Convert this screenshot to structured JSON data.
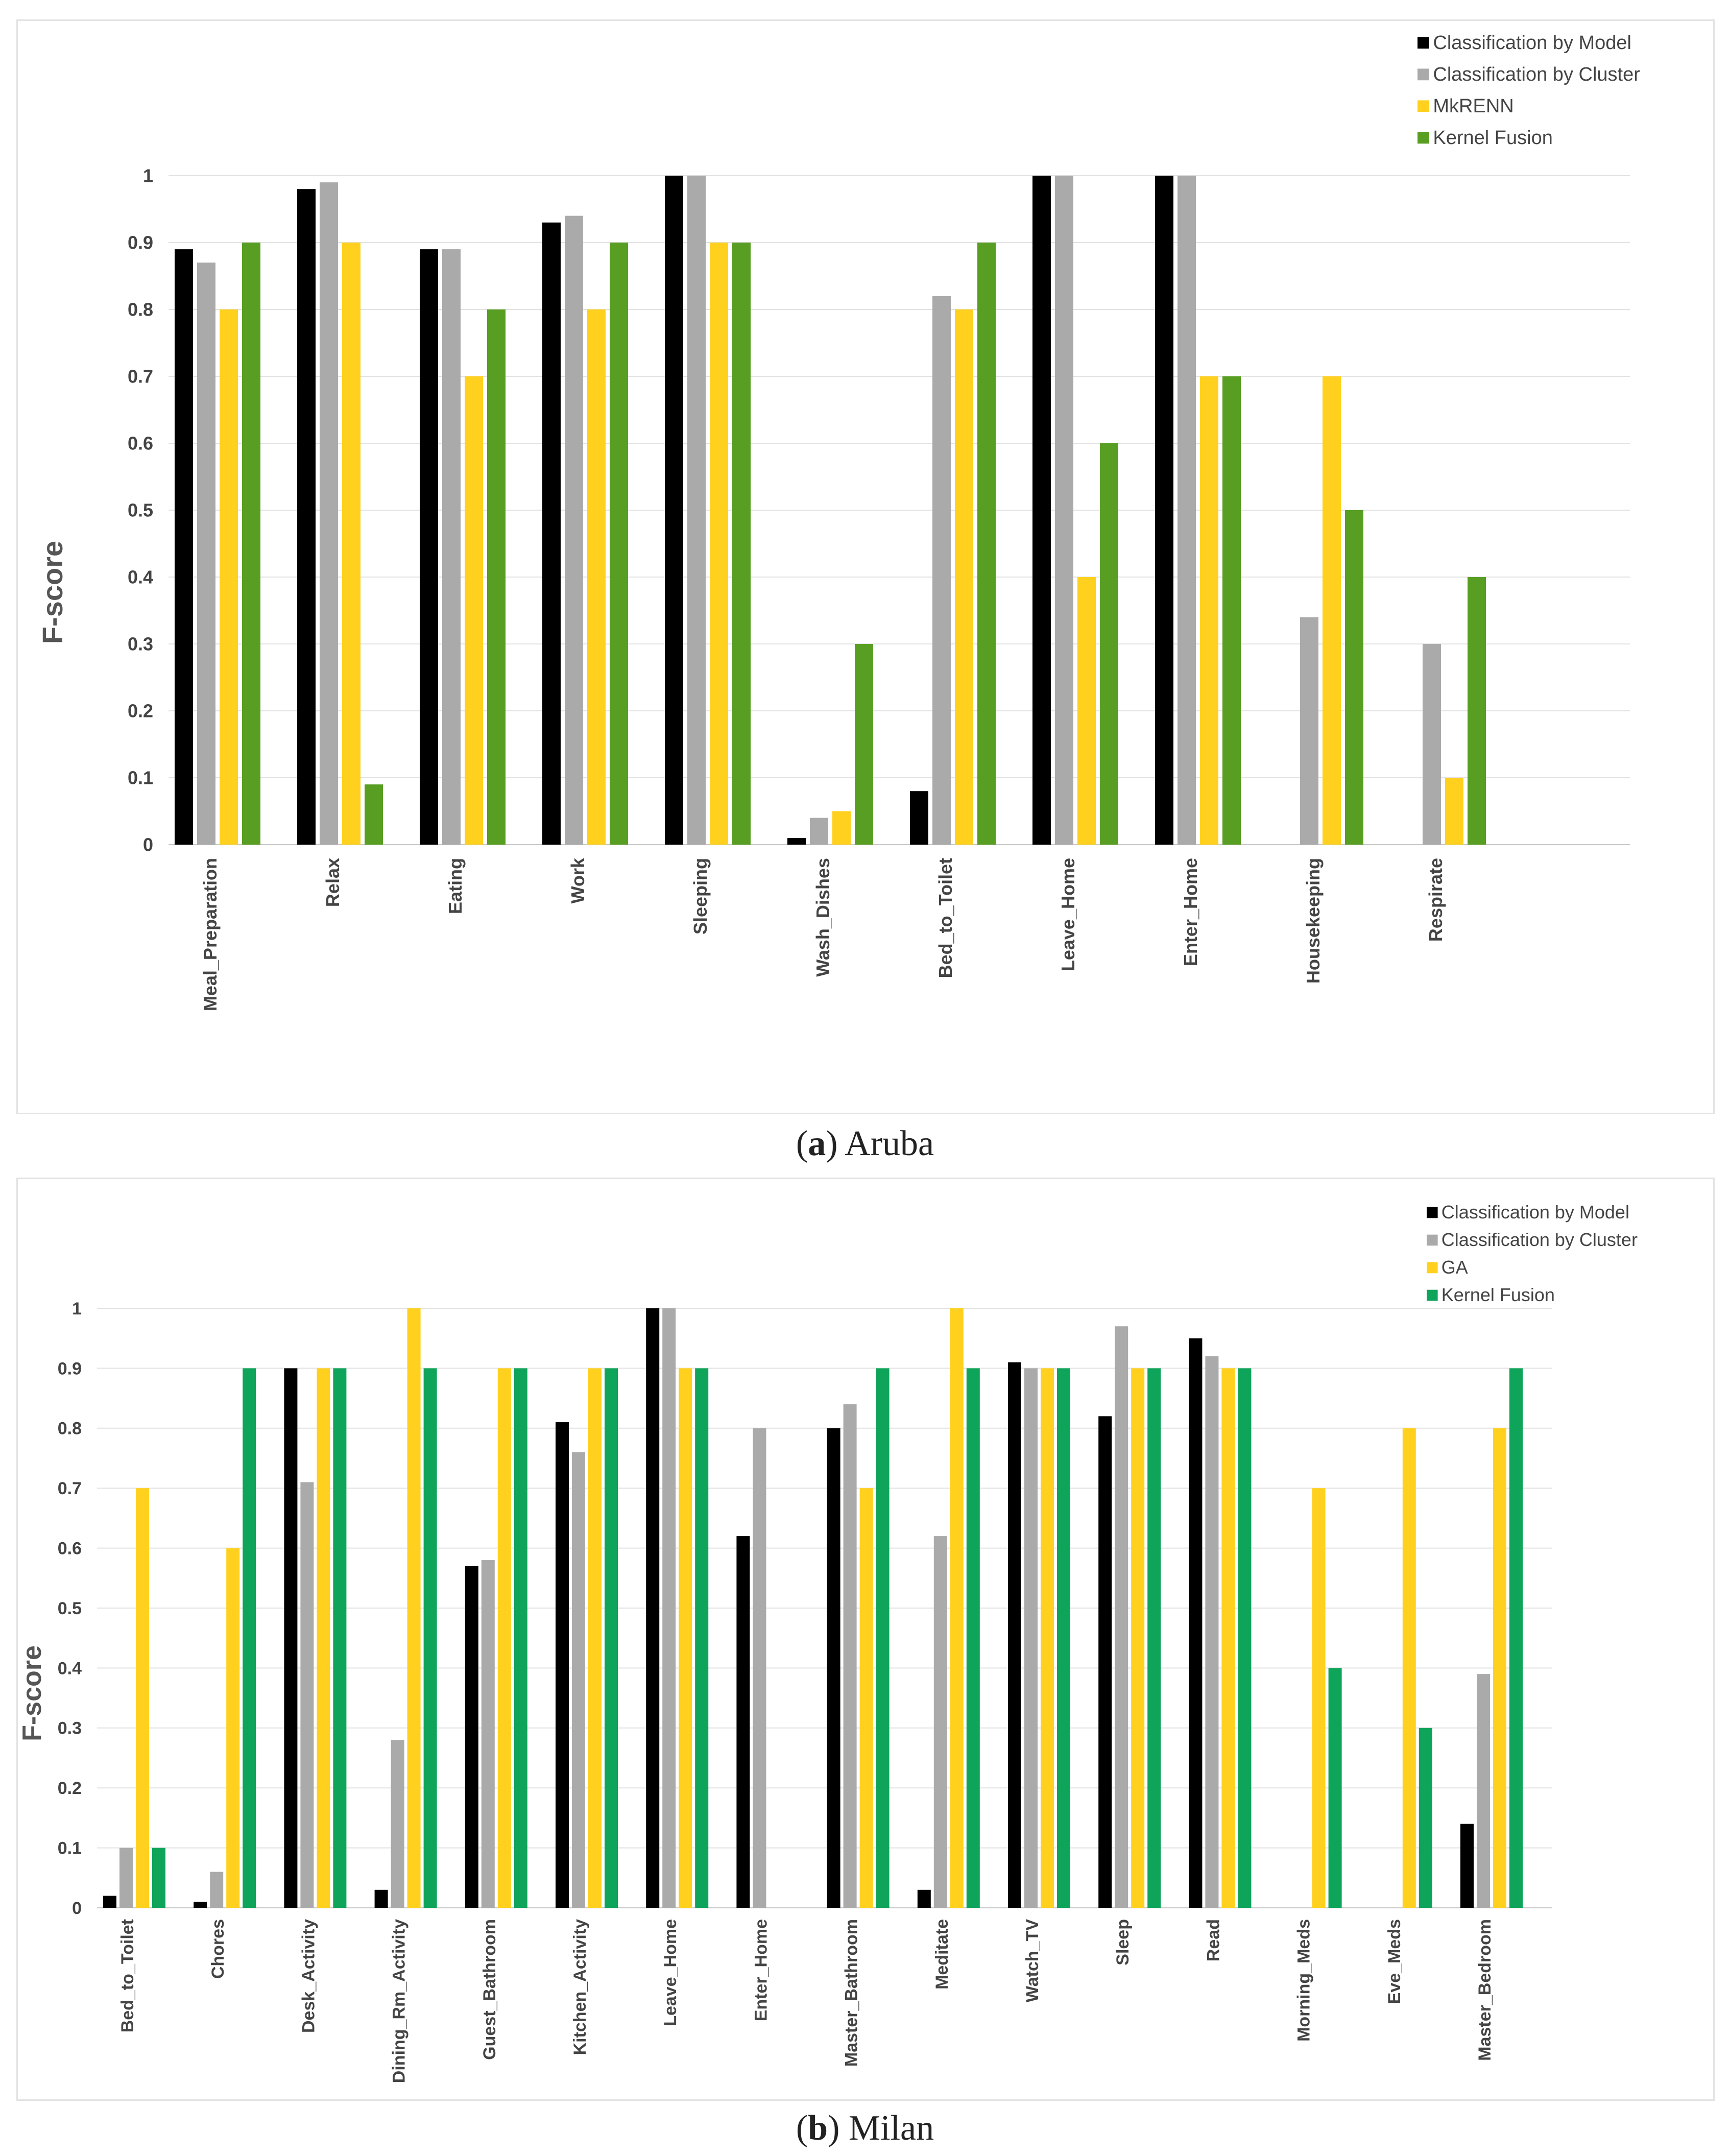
{
  "chart_data": [
    {
      "type": "bar",
      "panel_label": "a",
      "title": "Aruba",
      "ylabel": "F-score",
      "xlabel": "",
      "ylim": [
        0,
        1
      ],
      "yticks": [
        "0",
        "0.1",
        "0.2",
        "0.3",
        "0.4",
        "0.5",
        "0.6",
        "0.7",
        "0.8",
        "0.9",
        "1"
      ],
      "grid": true,
      "legend_position": "top-right",
      "categories": [
        "Meal_Preparation",
        "Relax",
        "Eating",
        "Work",
        "Sleeping",
        "Wash_Dishes",
        "Bed_to_Toilet",
        "Leave_Home",
        "Enter_Home",
        "Housekeeping",
        "Respirate"
      ],
      "series": [
        {
          "name": "Classification by Model",
          "color": "#000000",
          "values": [
            0.89,
            0.98,
            0.89,
            0.93,
            1.0,
            0.01,
            0.08,
            1.0,
            1.0,
            0,
            0
          ]
        },
        {
          "name": "Classification by Cluster",
          "color": "#aaaaaa",
          "values": [
            0.87,
            0.99,
            0.89,
            0.94,
            1.0,
            0.04,
            0.82,
            1.0,
            1.0,
            0.34,
            0.3
          ]
        },
        {
          "name": "MkRENN",
          "color": "#ffd11e",
          "values": [
            0.8,
            0.9,
            0.7,
            0.8,
            0.9,
            0.05,
            0.8,
            0.4,
            0.7,
            0.7,
            0.1
          ]
        },
        {
          "name": "Kernel Fusion",
          "color": "#579e22",
          "values": [
            0.9,
            0.09,
            0.8,
            0.9,
            0.9,
            0.3,
            0.9,
            0.6,
            0.7,
            0.5,
            0.4
          ]
        }
      ]
    },
    {
      "type": "bar",
      "panel_label": "b",
      "title": "Milan",
      "ylabel": "F-score",
      "xlabel": "",
      "ylim": [
        0,
        1
      ],
      "yticks": [
        "0",
        "0.1",
        "0.2",
        "0.3",
        "0.4",
        "0.5",
        "0.6",
        "0.7",
        "0.8",
        "0.9",
        "1"
      ],
      "grid": true,
      "legend_position": "top-right",
      "categories": [
        "Bed_to_Toilet",
        "Chores",
        "Desk_Activity",
        "Dining_Rm_Activity",
        "Guest_Bathroom",
        "Kitchen_Activity",
        "Leave_Home",
        "Enter_Home",
        "Master_Bathroom",
        "Meditate",
        "Watch_TV",
        "Sleep",
        "Read",
        "Morning_Meds",
        "Eve_Meds",
        "Master_Bedroom"
      ],
      "series": [
        {
          "name": "Classification by Model",
          "color": "#000000",
          "values": [
            0.02,
            0.01,
            0.9,
            0.03,
            0.57,
            0.81,
            1.0,
            0.62,
            0.8,
            0.03,
            0.91,
            0.82,
            0.95,
            0,
            0,
            0.14
          ]
        },
        {
          "name": "Classification by Cluster",
          "color": "#aaaaaa",
          "values": [
            0.1,
            0.06,
            0.71,
            0.28,
            0.58,
            0.76,
            1.0,
            0.8,
            0.84,
            0.62,
            0.9,
            0.97,
            0.92,
            0,
            0,
            0.39
          ]
        },
        {
          "name": "GA",
          "color": "#ffd11e",
          "values": [
            0.7,
            0.6,
            0.9,
            1.0,
            0.9,
            0.9,
            0.9,
            0,
            0.7,
            1.0,
            0.9,
            0.9,
            0.9,
            0.7,
            0.8,
            0.8
          ]
        },
        {
          "name": "Kernel Fusion",
          "color": "#0ea45a",
          "values": [
            0.1,
            0.9,
            0.9,
            0.9,
            0.9,
            0.9,
            0.9,
            0,
            0.9,
            0.9,
            0.9,
            0.9,
            0.9,
            0.4,
            0.3,
            0.9
          ]
        }
      ]
    }
  ]
}
